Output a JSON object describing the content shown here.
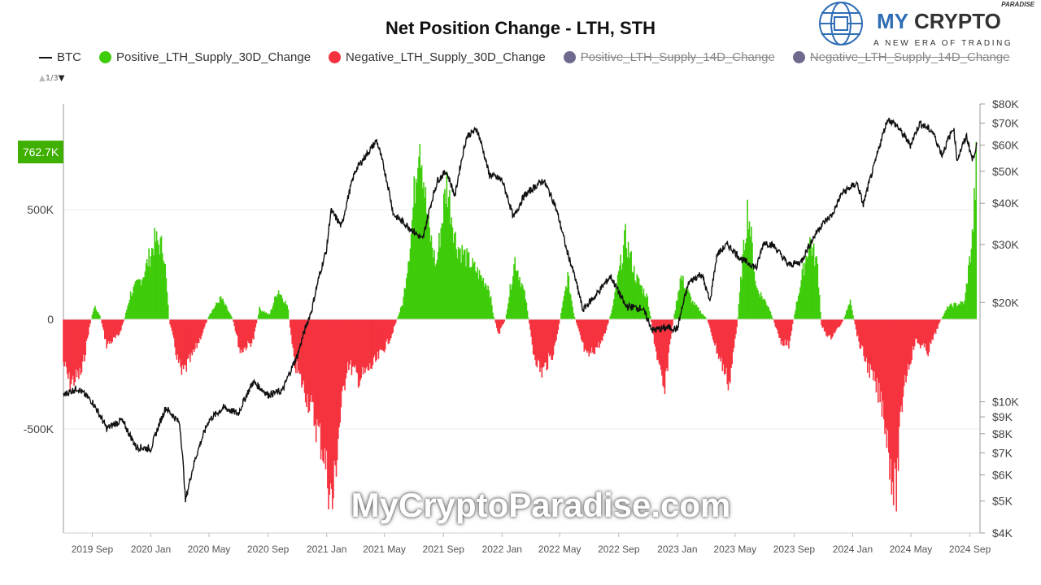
{
  "title": "Net Position Change - LTH, STH",
  "legend": [
    {
      "label": "BTC",
      "color": "#111111",
      "visible": true,
      "marker": "line"
    },
    {
      "label": "Positive_LTH_Supply_30D_Change",
      "color": "#3fcc0a",
      "visible": true,
      "marker": "dot"
    },
    {
      "label": "Negative_LTH_Supply_30D_Change",
      "color": "#f5333f",
      "visible": true,
      "marker": "dot"
    },
    {
      "label": "Positive_LTH_Supply_14D_Change",
      "color": "#6e6a8e",
      "visible": false,
      "marker": "dot"
    },
    {
      "label": "Negative_LTH_Supply_14D_Change",
      "color": "#6e6a8e",
      "visible": false,
      "marker": "dot"
    }
  ],
  "legend_pager": {
    "text": "1/3",
    "up_icon": "triangle-up-icon",
    "down_icon": "triangle-down-icon"
  },
  "logo": {
    "brand_my": "MY",
    "brand_crypto": "CRYPTO",
    "brand_small": "PARADISE",
    "tagline": "A NEW ERA OF TRADING",
    "icon": "globe-circuit-icon"
  },
  "watermark": "MyCryptoParadise.com",
  "chart_data": {
    "type": "bar",
    "title": "Net Position Change - LTH, STH",
    "last_value_label": "762.7K",
    "left_axis": {
      "ticks": [
        500000,
        0,
        -500000
      ],
      "tick_labels": [
        "500K",
        "0",
        "-500K"
      ],
      "range": [
        -975000,
        975000
      ]
    },
    "right_axis": {
      "scale": "log",
      "ticks": [
        80000,
        70000,
        60000,
        50000,
        40000,
        30000,
        20000,
        10000,
        9000,
        8000,
        7000,
        6000,
        5000,
        4000
      ],
      "tick_labels": [
        "$80K",
        "$70K",
        "$60K",
        "$50K",
        "$40K",
        "$30K",
        "$20K",
        "$10K",
        "$9K",
        "$8K",
        "$7K",
        "$6K",
        "$5K",
        "$4K"
      ],
      "range": [
        4000,
        80000
      ]
    },
    "x_axis": {
      "tick_labels": [
        "2019 Sep",
        "2020 Jan",
        "2020 May",
        "2020 Sep",
        "2021 Jan",
        "2021 May",
        "2021 Sep",
        "2022 Jan",
        "2022 May",
        "2022 Sep",
        "2023 Jan",
        "2023 May",
        "2023 Sep",
        "2024 Jan",
        "2024 May",
        "2024 Sep"
      ],
      "tick_dates": [
        "2019-09-01",
        "2020-01-01",
        "2020-05-01",
        "2020-09-01",
        "2021-01-01",
        "2021-05-01",
        "2021-09-01",
        "2022-01-01",
        "2022-05-01",
        "2022-09-01",
        "2023-01-01",
        "2023-05-01",
        "2023-09-01",
        "2024-01-01",
        "2024-05-01",
        "2024-09-01"
      ],
      "range": [
        "2019-07-03",
        "2024-09-22"
      ]
    },
    "grid": true,
    "legend_position": "top",
    "series": [
      {
        "name": "Positive_LTH_Supply_30D_Change / Negative_LTH_Supply_30D_Change",
        "unit": "K",
        "points": [
          [
            "2019-07-03",
            -200
          ],
          [
            "2019-07-16",
            -300
          ],
          [
            "2019-08-10",
            -250
          ],
          [
            "2019-08-25",
            -50
          ],
          [
            "2019-09-05",
            60
          ],
          [
            "2019-09-17",
            20
          ],
          [
            "2019-10-01",
            -120
          ],
          [
            "2019-10-25",
            -80
          ],
          [
            "2019-11-07",
            0
          ],
          [
            "2019-11-20",
            120
          ],
          [
            "2019-12-15",
            200
          ],
          [
            "2020-01-10",
            370
          ],
          [
            "2020-01-28",
            330
          ],
          [
            "2020-02-08",
            0
          ],
          [
            "2020-02-22",
            -150
          ],
          [
            "2020-03-05",
            -260
          ],
          [
            "2020-03-26",
            -180
          ],
          [
            "2020-04-20",
            -50
          ],
          [
            "2020-05-01",
            20
          ],
          [
            "2020-05-26",
            100
          ],
          [
            "2020-06-20",
            0
          ],
          [
            "2020-07-05",
            -150
          ],
          [
            "2020-08-01",
            -100
          ],
          [
            "2020-08-14",
            50
          ],
          [
            "2020-09-04",
            20
          ],
          [
            "2020-09-22",
            140
          ],
          [
            "2020-10-12",
            60
          ],
          [
            "2020-10-25",
            -200
          ],
          [
            "2020-11-28",
            -400
          ],
          [
            "2020-12-24",
            -600
          ],
          [
            "2021-01-13",
            -870
          ],
          [
            "2021-01-27",
            -500
          ],
          [
            "2021-02-13",
            -200
          ],
          [
            "2021-03-10",
            -280
          ],
          [
            "2021-04-13",
            -200
          ],
          [
            "2021-05-15",
            -80
          ],
          [
            "2021-06-09",
            80
          ],
          [
            "2021-06-26",
            400
          ],
          [
            "2021-07-13",
            900
          ],
          [
            "2021-07-30",
            450
          ],
          [
            "2021-08-17",
            250
          ],
          [
            "2021-09-08",
            640
          ],
          [
            "2021-09-28",
            350
          ],
          [
            "2021-11-01",
            250
          ],
          [
            "2021-12-05",
            150
          ],
          [
            "2021-12-14",
            20
          ],
          [
            "2021-12-25",
            -70
          ],
          [
            "2022-01-08",
            0
          ],
          [
            "2022-01-28",
            280
          ],
          [
            "2022-02-19",
            100
          ],
          [
            "2022-03-07",
            -150
          ],
          [
            "2022-03-24",
            -250
          ],
          [
            "2022-04-19",
            -150
          ],
          [
            "2022-05-06",
            50
          ],
          [
            "2022-05-18",
            200
          ],
          [
            "2022-05-31",
            20
          ],
          [
            "2022-06-26",
            -180
          ],
          [
            "2022-07-30",
            -100
          ],
          [
            "2022-08-19",
            50
          ],
          [
            "2022-09-15",
            380
          ],
          [
            "2022-10-06",
            200
          ],
          [
            "2022-10-31",
            100
          ],
          [
            "2022-11-14",
            -100
          ],
          [
            "2022-12-05",
            -360
          ],
          [
            "2022-12-17",
            -100
          ],
          [
            "2023-01-08",
            200
          ],
          [
            "2023-02-02",
            80
          ],
          [
            "2023-03-04",
            0
          ],
          [
            "2023-03-25",
            -150
          ],
          [
            "2023-04-19",
            -300
          ],
          [
            "2023-05-06",
            -20
          ],
          [
            "2023-05-14",
            200
          ],
          [
            "2023-05-28",
            530
          ],
          [
            "2023-06-14",
            150
          ],
          [
            "2023-07-10",
            60
          ],
          [
            "2023-08-04",
            -100
          ],
          [
            "2023-08-21",
            -120
          ],
          [
            "2023-09-04",
            50
          ],
          [
            "2023-10-03",
            370
          ],
          [
            "2023-10-20",
            250
          ],
          [
            "2023-10-28",
            -30
          ],
          [
            "2023-11-14",
            -90
          ],
          [
            "2023-12-09",
            -20
          ],
          [
            "2023-12-27",
            80
          ],
          [
            "2024-01-13",
            -100
          ],
          [
            "2024-02-07",
            -250
          ],
          [
            "2024-03-04",
            -400
          ],
          [
            "2024-03-30",
            -840
          ],
          [
            "2024-04-16",
            -300
          ],
          [
            "2024-05-11",
            -100
          ],
          [
            "2024-06-06",
            -150
          ],
          [
            "2024-07-01",
            -10
          ],
          [
            "2024-07-18",
            60
          ],
          [
            "2024-08-21",
            80
          ],
          [
            "2024-09-07",
            400
          ],
          [
            "2024-09-15",
            762.7
          ]
        ]
      },
      {
        "name": "BTC",
        "unit": "USD K",
        "points": [
          [
            "2019-07-03",
            10.5
          ],
          [
            "2019-08-01",
            11
          ],
          [
            "2019-09-01",
            10
          ],
          [
            "2019-10-01",
            8.3
          ],
          [
            "2019-11-01",
            8.8
          ],
          [
            "2019-12-01",
            7.3
          ],
          [
            "2020-01-01",
            7.2
          ],
          [
            "2020-02-01",
            9.6
          ],
          [
            "2020-03-01",
            8.6
          ],
          [
            "2020-03-13",
            5
          ],
          [
            "2020-04-01",
            6.6
          ],
          [
            "2020-05-01",
            8.8
          ],
          [
            "2020-06-01",
            9.6
          ],
          [
            "2020-07-01",
            9.2
          ],
          [
            "2020-08-01",
            11.5
          ],
          [
            "2020-09-01",
            10.5
          ],
          [
            "2020-10-01",
            10.8
          ],
          [
            "2020-11-01",
            13.8
          ],
          [
            "2020-12-01",
            19
          ],
          [
            "2021-01-01",
            29
          ],
          [
            "2021-01-10",
            38
          ],
          [
            "2021-02-01",
            34
          ],
          [
            "2021-03-01",
            50
          ],
          [
            "2021-04-01",
            58
          ],
          [
            "2021-04-15",
            62
          ],
          [
            "2021-05-20",
            37
          ],
          [
            "2021-06-20",
            34
          ],
          [
            "2021-07-20",
            31
          ],
          [
            "2021-08-20",
            47
          ],
          [
            "2021-09-07",
            50
          ],
          [
            "2021-09-25",
            42
          ],
          [
            "2021-10-20",
            64
          ],
          [
            "2021-11-10",
            67
          ],
          [
            "2021-12-05",
            49
          ],
          [
            "2022-01-01",
            47
          ],
          [
            "2022-01-25",
            36
          ],
          [
            "2022-02-15",
            42
          ],
          [
            "2022-03-28",
            47
          ],
          [
            "2022-04-20",
            40
          ],
          [
            "2022-05-15",
            29
          ],
          [
            "2022-06-18",
            19
          ],
          [
            "2022-07-15",
            21
          ],
          [
            "2022-08-15",
            24
          ],
          [
            "2022-09-15",
            19.5
          ],
          [
            "2022-10-20",
            19.2
          ],
          [
            "2022-11-10",
            16.5
          ],
          [
            "2022-12-15",
            16.8
          ],
          [
            "2023-01-01",
            16.6
          ],
          [
            "2023-01-25",
            23
          ],
          [
            "2023-02-20",
            24.5
          ],
          [
            "2023-03-10",
            20
          ],
          [
            "2023-03-25",
            28
          ],
          [
            "2023-04-15",
            30
          ],
          [
            "2023-05-15",
            27
          ],
          [
            "2023-06-15",
            25.5
          ],
          [
            "2023-06-30",
            30.5
          ],
          [
            "2023-07-20",
            29.8
          ],
          [
            "2023-08-20",
            26
          ],
          [
            "2023-09-15",
            26.5
          ],
          [
            "2023-10-25",
            34
          ],
          [
            "2023-11-20",
            37
          ],
          [
            "2023-12-10",
            43
          ],
          [
            "2024-01-10",
            46
          ],
          [
            "2024-01-23",
            39.5
          ],
          [
            "2024-02-15",
            52
          ],
          [
            "2024-03-14",
            72
          ],
          [
            "2024-04-01",
            69
          ],
          [
            "2024-04-30",
            60
          ],
          [
            "2024-05-20",
            70
          ],
          [
            "2024-06-15",
            66
          ],
          [
            "2024-07-05",
            56
          ],
          [
            "2024-07-29",
            68
          ],
          [
            "2024-08-05",
            54
          ],
          [
            "2024-08-25",
            64
          ],
          [
            "2024-09-06",
            54
          ],
          [
            "2024-09-15",
            60
          ]
        ]
      }
    ]
  }
}
